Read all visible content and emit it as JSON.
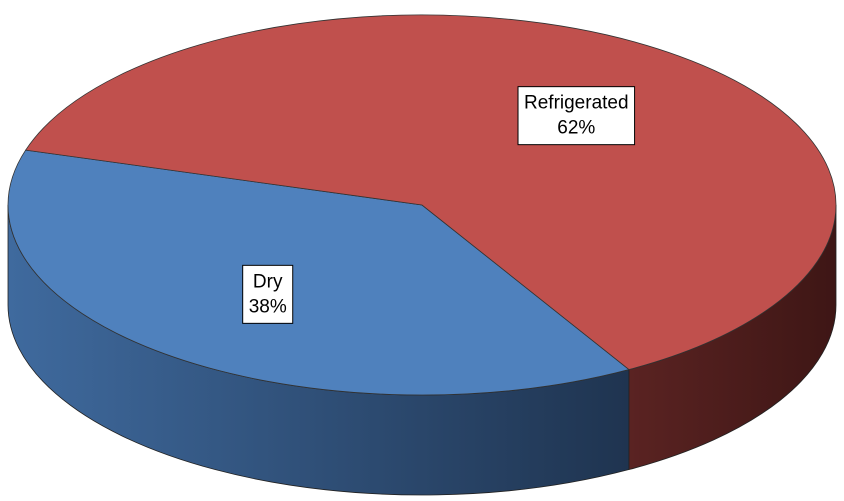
{
  "chart_data": {
    "type": "pie",
    "categories": [
      "Dry",
      "Refrigerated"
    ],
    "values": [
      38,
      62
    ],
    "value_labels": [
      "38%",
      "62%"
    ],
    "colors": [
      "#4f81bd",
      "#c0504d"
    ]
  }
}
